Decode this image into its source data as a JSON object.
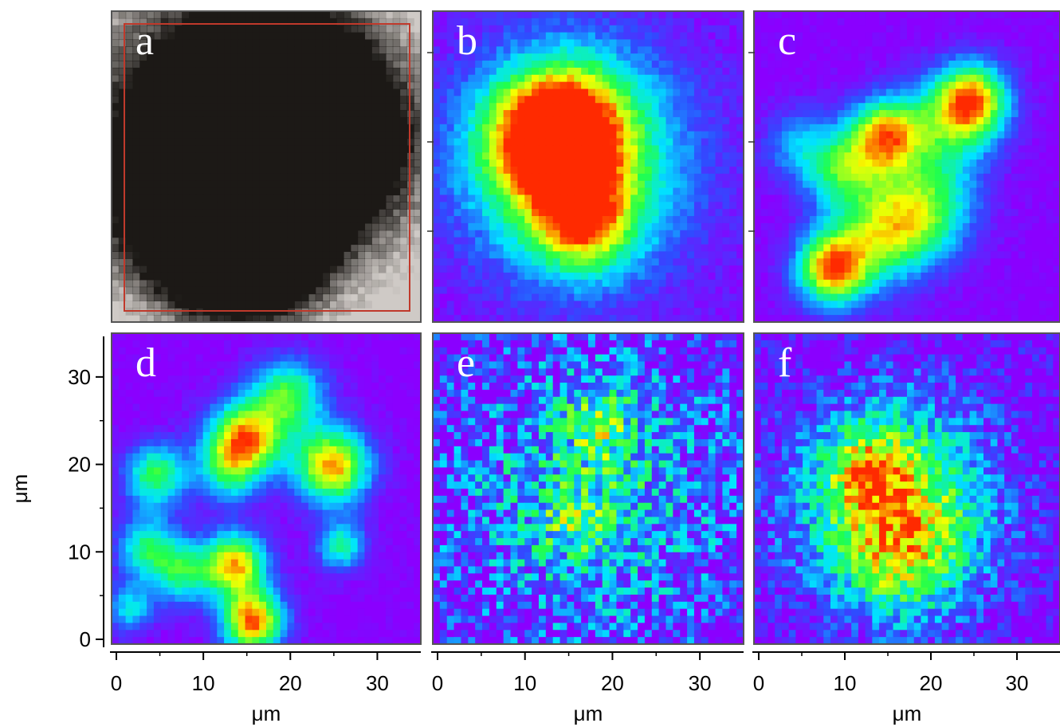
{
  "chart_data": {
    "type": "heatmap",
    "colorscale": [
      "#8a00ff",
      "#2f4cff",
      "#00e5ff",
      "#22ff4a",
      "#f6ff00",
      "#ff2a00"
    ],
    "panels": [
      {
        "id": "a",
        "label": "a",
        "kind": "optical-image",
        "description_colors": {
          "background": "#cfcac6",
          "particle": "#1c1916",
          "roi_box": "#c0392b"
        },
        "blobs": [
          [
            14,
            22,
            11,
            1.0
          ],
          [
            9,
            16,
            6,
            0.9
          ],
          [
            24,
            20,
            7,
            0.9
          ],
          [
            13,
            10,
            6,
            0.9
          ],
          [
            18,
            27,
            6,
            0.8
          ],
          [
            16,
            8,
            5,
            0.8
          ]
        ]
      },
      {
        "id": "b",
        "label": "b",
        "kind": "map",
        "noise": 0.12,
        "base": 0.02,
        "blobs": [
          [
            16,
            18,
            9,
            0.65
          ],
          [
            15,
            22,
            5,
            0.6
          ],
          [
            17,
            11,
            4,
            0.55
          ],
          [
            12,
            20,
            5,
            0.4
          ]
        ]
      },
      {
        "id": "c",
        "label": "c",
        "kind": "map",
        "noise": 0.08,
        "base": 0.0,
        "blobs": [
          [
            25,
            25,
            3,
            0.8
          ],
          [
            15,
            21,
            3,
            0.8
          ],
          [
            9,
            6,
            3,
            0.9
          ],
          [
            15,
            10,
            4,
            0.6
          ],
          [
            10,
            17,
            3,
            0.5
          ],
          [
            20,
            13,
            4,
            0.5
          ],
          [
            22,
            22,
            4,
            0.4
          ],
          [
            5,
            20,
            3,
            0.3
          ]
        ]
      },
      {
        "id": "d",
        "label": "d",
        "kind": "map",
        "noise": 0.08,
        "base": 0.0,
        "blobs": [
          [
            15,
            23,
            3,
            0.9
          ],
          [
            25,
            20,
            3,
            0.9
          ],
          [
            20,
            28,
            3,
            0.6
          ],
          [
            14,
            9,
            2.5,
            0.85
          ],
          [
            16,
            2.5,
            2.5,
            0.95
          ],
          [
            5,
            19,
            2.5,
            0.6
          ],
          [
            4,
            11,
            2.5,
            0.5
          ],
          [
            8,
            8,
            2.5,
            0.5
          ],
          [
            26,
            11,
            2,
            0.5
          ],
          [
            2,
            4,
            2,
            0.4
          ],
          [
            13,
            19,
            2.5,
            0.35
          ]
        ]
      },
      {
        "id": "e",
        "label": "e",
        "kind": "map",
        "noise": 0.55,
        "base": 0.02,
        "blobs": [
          [
            18,
            17,
            11,
            0.4
          ],
          [
            19,
            25,
            3,
            0.3
          ],
          [
            16,
            14,
            3,
            0.2
          ]
        ]
      },
      {
        "id": "f",
        "label": "f",
        "kind": "map",
        "noise": 0.35,
        "base": 0.0,
        "blobs": [
          [
            16,
            16,
            8,
            0.75
          ],
          [
            13,
            20,
            3,
            0.35
          ],
          [
            17,
            9,
            5,
            0.3
          ]
        ]
      }
    ],
    "extent_um": [
      0,
      35
    ],
    "x_ticks": [
      0,
      10,
      20,
      30
    ],
    "y_ticks": [
      0,
      10,
      20,
      30
    ],
    "xlabel": "μm",
    "ylabel": "μm"
  }
}
